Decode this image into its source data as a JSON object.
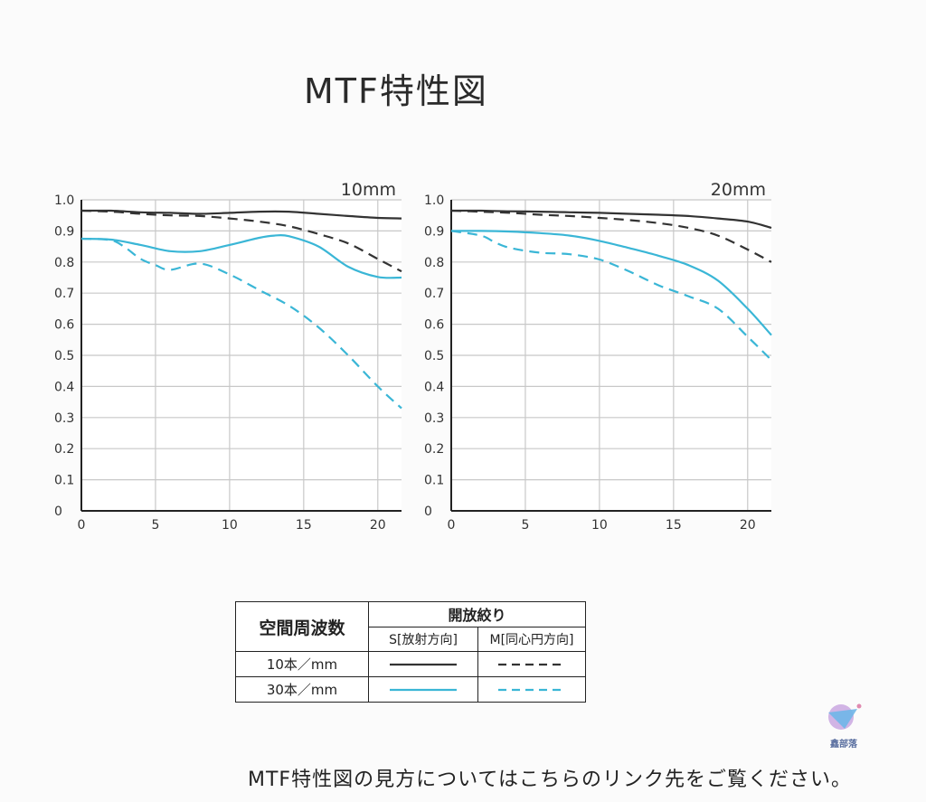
{
  "page": {
    "title": "MTF特性図",
    "footer_note": "MTF特性図の見方についてはこちらのリンク先をご覧ください。",
    "watermark_text": "鑫部落"
  },
  "colors": {
    "s_line": "#333333",
    "m_line": "#333333",
    "s_line_30": "#3ab6d6",
    "m_line_30": "#3ab6d6",
    "grid": "#c8c8c8",
    "axis": "#222222"
  },
  "legend": {
    "row_header": "空間周波数",
    "group_header": "開放絞り",
    "col_s": "S[放射方向]",
    "col_m": "M[同心円方向]",
    "rows": [
      {
        "label": "10本／mm",
        "color": "#333333"
      },
      {
        "label": "30本／mm",
        "color": "#3ab6d6"
      }
    ]
  },
  "chart_data": [
    {
      "type": "line",
      "title": "10mm",
      "xlim": [
        0,
        21.6
      ],
      "ylim": [
        0,
        1.0
      ],
      "x_ticks": [
        0,
        5,
        10,
        15,
        20
      ],
      "y_ticks": [
        0,
        0.1,
        0.2,
        0.3,
        0.4,
        0.5,
        0.6,
        0.7,
        0.8,
        0.9,
        1.0
      ],
      "y_tick_labels": [
        "0",
        "0.1",
        "0.2",
        "0.3",
        "0.4",
        "0.5",
        "0.6",
        "0.7",
        "0.8",
        "0.9",
        "1.0"
      ],
      "grid": true,
      "series": [
        {
          "name": "10本／mm S[放射方向]",
          "style": "solid",
          "color": "#333333",
          "x": [
            0,
            2,
            4,
            6,
            8,
            10,
            12,
            14,
            16,
            18,
            20,
            21.6
          ],
          "y": [
            0.965,
            0.965,
            0.96,
            0.958,
            0.955,
            0.958,
            0.962,
            0.962,
            0.955,
            0.948,
            0.942,
            0.94
          ]
        },
        {
          "name": "10本／mm M[同心円方向]",
          "style": "dashed",
          "color": "#333333",
          "x": [
            0,
            2,
            4,
            6,
            8,
            10,
            12,
            14,
            16,
            18,
            20,
            21.6
          ],
          "y": [
            0.965,
            0.962,
            0.955,
            0.95,
            0.948,
            0.94,
            0.93,
            0.915,
            0.89,
            0.86,
            0.81,
            0.77
          ]
        },
        {
          "name": "30本／mm S[放射方向]",
          "style": "solid",
          "color": "#3ab6d6",
          "x": [
            0,
            2,
            4,
            6,
            8,
            10,
            12,
            13,
            14,
            16,
            18,
            20,
            21.6
          ],
          "y": [
            0.875,
            0.872,
            0.855,
            0.835,
            0.835,
            0.855,
            0.878,
            0.885,
            0.883,
            0.85,
            0.785,
            0.752,
            0.75
          ]
        },
        {
          "name": "30本／mm M[同心円方向]",
          "style": "dashed",
          "color": "#3ab6d6",
          "x": [
            0,
            2,
            3,
            4,
            5,
            6,
            8,
            10,
            12,
            14,
            16,
            18,
            20,
            21.6
          ],
          "y": [
            0.875,
            0.87,
            0.845,
            0.81,
            0.79,
            0.775,
            0.795,
            0.76,
            0.71,
            0.66,
            0.59,
            0.5,
            0.4,
            0.33
          ]
        }
      ]
    },
    {
      "type": "line",
      "title": "20mm",
      "xlim": [
        0,
        21.6
      ],
      "ylim": [
        0,
        1.0
      ],
      "x_ticks": [
        0,
        5,
        10,
        15,
        20
      ],
      "y_ticks": [
        0,
        0.1,
        0.2,
        0.3,
        0.4,
        0.5,
        0.6,
        0.7,
        0.8,
        0.9,
        1.0
      ],
      "y_tick_labels": [
        "0",
        "0.1",
        "0.2",
        "0.3",
        "0.4",
        "0.5",
        "0.6",
        "0.7",
        "0.8",
        "0.9",
        "1.0"
      ],
      "grid": true,
      "series": [
        {
          "name": "10本／mm S[放射方向]",
          "style": "solid",
          "color": "#333333",
          "x": [
            0,
            2,
            4,
            6,
            8,
            10,
            12,
            14,
            16,
            18,
            20,
            21.6
          ],
          "y": [
            0.965,
            0.965,
            0.963,
            0.962,
            0.96,
            0.958,
            0.955,
            0.952,
            0.948,
            0.94,
            0.93,
            0.91
          ]
        },
        {
          "name": "10本／mm M[同心円方向]",
          "style": "dashed",
          "color": "#333333",
          "x": [
            0,
            2,
            4,
            6,
            8,
            10,
            12,
            14,
            16,
            18,
            20,
            21.6
          ],
          "y": [
            0.965,
            0.962,
            0.958,
            0.952,
            0.948,
            0.942,
            0.935,
            0.925,
            0.91,
            0.885,
            0.84,
            0.8
          ]
        },
        {
          "name": "30本／mm S[放射方向]",
          "style": "solid",
          "color": "#3ab6d6",
          "x": [
            0,
            2,
            4,
            6,
            8,
            10,
            12,
            14,
            16,
            18,
            20,
            21.6
          ],
          "y": [
            0.9,
            0.9,
            0.898,
            0.893,
            0.885,
            0.868,
            0.845,
            0.82,
            0.79,
            0.74,
            0.65,
            0.565
          ]
        },
        {
          "name": "30本／mm M[同心円方向]",
          "style": "dashed",
          "color": "#3ab6d6",
          "x": [
            0,
            2,
            3,
            4,
            6,
            8,
            10,
            12,
            14,
            16,
            18,
            20,
            21.6
          ],
          "y": [
            0.9,
            0.885,
            0.862,
            0.845,
            0.83,
            0.825,
            0.808,
            0.77,
            0.725,
            0.69,
            0.65,
            0.56,
            0.485
          ]
        }
      ]
    }
  ]
}
